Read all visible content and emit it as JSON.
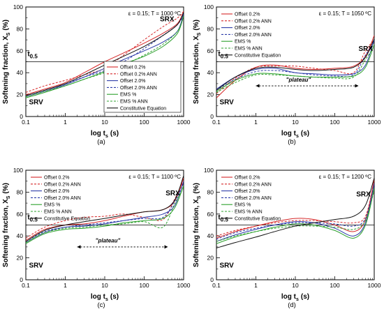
{
  "legend_entries": [
    "Offset 0.2%",
    "Offset 0.2% ANN",
    "Offset 2.0%",
    "Offset 2.0% ANN",
    "EMS %",
    "EMS % ANN",
    "Constitutive Equation"
  ],
  "series_colors": [
    "#d62728",
    "#d62728",
    "#2b3aa8",
    "#2b3aa8",
    "#2ca02c",
    "#2ca02c",
    "#111111"
  ],
  "series_dashed": [
    false,
    true,
    false,
    true,
    false,
    true,
    false
  ],
  "chart_data": [
    {
      "type": "line",
      "caption": "(a)",
      "condition": "ε = 0.15; T = 1000 ºC",
      "xlabel": "log t",
      "xlabel_sub": "s",
      "xlabel_unit": "(s)",
      "ylabel": "Softening fraction, X",
      "ylabel_sub": "S",
      "ylabel_unit": "(%)",
      "x_scale": "log",
      "xlim": [
        0.1,
        1000
      ],
      "ylim": [
        0,
        100
      ],
      "x_ticks": [
        0.1,
        1,
        10,
        100,
        1000
      ],
      "x_tick_labels": [
        "0.1",
        "1",
        "10",
        "100",
        "1000"
      ],
      "y_ticks": [
        0,
        20,
        40,
        60,
        80,
        100
      ],
      "y_tick_labels": [
        "0",
        "20",
        "40",
        "60",
        "80",
        "100"
      ],
      "legend_position": "bottom-right",
      "annotations": [
        {
          "text": "SRX",
          "x": 250,
          "y": 87
        },
        {
          "text": "SRV",
          "x": 0.12,
          "y": 11
        }
      ],
      "t05": {
        "label": "t",
        "label_sub": "0.5",
        "y": 50,
        "label_x": 0.11,
        "label_y": 55
      },
      "series": [
        {
          "name": "Offset 0.2%",
          "x": [
            0.1,
            0.3,
            1,
            3,
            10,
            30,
            100,
            300,
            700,
            1000
          ],
          "y": [
            20,
            25,
            31,
            40,
            50,
            58,
            67,
            76,
            85,
            96
          ]
        },
        {
          "name": "Offset 0.2% ANN",
          "x": [
            0.1,
            0.3,
            1,
            3,
            10,
            30,
            100,
            300,
            700,
            1000
          ],
          "y": [
            22,
            28,
            33,
            38,
            44,
            56,
            70,
            82,
            90,
            96
          ]
        },
        {
          "name": "Offset 2.0%",
          "x": [
            0.1,
            0.3,
            1,
            3,
            10,
            30,
            100,
            300,
            700,
            1000
          ],
          "y": [
            18,
            23,
            29,
            36,
            44,
            52,
            60,
            68,
            78,
            94
          ]
        },
        {
          "name": "Offset 2.0% ANN",
          "x": [
            0.1,
            0.3,
            1,
            3,
            10,
            30,
            100,
            300,
            700,
            1000
          ],
          "y": [
            19,
            24,
            30,
            36,
            42,
            50,
            62,
            74,
            84,
            93
          ]
        },
        {
          "name": "EMS %",
          "x": [
            0.1,
            0.3,
            1,
            3,
            10,
            30,
            100,
            300,
            700,
            1000
          ],
          "y": [
            17,
            22,
            28,
            34,
            41,
            48,
            55,
            64,
            76,
            92
          ]
        },
        {
          "name": "EMS % ANN",
          "x": [
            0.1,
            0.3,
            1,
            3,
            10,
            30,
            100,
            300,
            700,
            1000
          ],
          "y": [
            18,
            23,
            28,
            34,
            40,
            47,
            56,
            66,
            78,
            91
          ]
        },
        {
          "name": "Constitutive Equation",
          "x": [
            0.1,
            0.3,
            1,
            3,
            10,
            30,
            100,
            300,
            700,
            1000
          ],
          "y": [
            19,
            24,
            30,
            38,
            47,
            55,
            64,
            74,
            84,
            95
          ]
        }
      ]
    },
    {
      "type": "line",
      "caption": "(b)",
      "condition": "ε = 0.15; T = 1050 ºC",
      "xlabel": "log t",
      "xlabel_sub": "s",
      "xlabel_unit": "(s)",
      "ylabel": "Softening fraction, X",
      "ylabel_sub": "S",
      "ylabel_unit": "(%)",
      "x_scale": "log",
      "xlim": [
        0.1,
        1000
      ],
      "ylim": [
        0,
        100
      ],
      "x_ticks": [
        0.1,
        1,
        10,
        100,
        1000
      ],
      "x_tick_labels": [
        "0.1",
        "1",
        "10",
        "100",
        "1000"
      ],
      "y_ticks": [
        0,
        20,
        40,
        60,
        80,
        100
      ],
      "y_tick_labels": [
        "0",
        "20",
        "40",
        "60",
        "80",
        "100"
      ],
      "legend_position": "top-left",
      "annotations": [
        {
          "text": "SRX",
          "x": 400,
          "y": 60
        },
        {
          "text": "SRV",
          "x": 0.12,
          "y": 11
        },
        {
          "text": "\"plateau\"",
          "x": 12,
          "y": 32
        }
      ],
      "plateau_arrow": {
        "x_start": 1,
        "x_end": 400,
        "y": 28
      },
      "t05": {
        "label": "t",
        "label_sub": "0.5",
        "y": 50,
        "label_x": 0.11,
        "label_y": 55
      },
      "series": [
        {
          "name": "Offset 0.2%",
          "x": [
            0.1,
            0.3,
            1,
            3,
            10,
            30,
            100,
            300,
            600,
            1000
          ],
          "y": [
            17,
            33,
            45,
            47,
            44,
            43,
            44,
            46,
            55,
            74
          ]
        },
        {
          "name": "Offset 0.2% ANN",
          "x": [
            0.1,
            0.3,
            1,
            3,
            10,
            30,
            100,
            300,
            600,
            1000
          ],
          "y": [
            21,
            35,
            45,
            46,
            46,
            44,
            42,
            40,
            60,
            70
          ]
        },
        {
          "name": "Offset 2.0%",
          "x": [
            0.1,
            0.3,
            1,
            3,
            10,
            30,
            100,
            300,
            600,
            1000
          ],
          "y": [
            25,
            36,
            43,
            44,
            40,
            39,
            38,
            39,
            47,
            70
          ]
        },
        {
          "name": "Offset 2.0% ANN",
          "x": [
            0.1,
            0.3,
            1,
            3,
            10,
            30,
            100,
            300,
            600,
            1000
          ],
          "y": [
            24,
            34,
            41,
            42,
            40,
            38,
            37,
            38,
            56,
            68
          ]
        },
        {
          "name": "EMS %",
          "x": [
            0.1,
            0.3,
            1,
            3,
            10,
            30,
            100,
            300,
            600,
            1000
          ],
          "y": [
            23,
            33,
            39,
            39,
            37,
            36,
            36,
            37,
            45,
            66
          ]
        },
        {
          "name": "EMS % ANN",
          "x": [
            0.1,
            0.3,
            1,
            3,
            10,
            30,
            100,
            300,
            600,
            1000
          ],
          "y": [
            22,
            31,
            38,
            38,
            37,
            36,
            35,
            36,
            52,
            64
          ]
        },
        {
          "name": "Constitutive Equation",
          "x": [
            0.1,
            0.3,
            1,
            3,
            10,
            30,
            100,
            300,
            600,
            1000
          ],
          "y": [
            24,
            36,
            44,
            45,
            43,
            42,
            43,
            45,
            54,
            71
          ]
        }
      ]
    },
    {
      "type": "line",
      "caption": "(c)",
      "condition": "ε = 0.15; T = 1100 ºC",
      "xlabel": "log t",
      "xlabel_sub": "s",
      "xlabel_unit": "(s)",
      "ylabel": "Softening fraction, X",
      "ylabel_sub": "S",
      "ylabel_unit": "(%)",
      "x_scale": "log",
      "xlim": [
        0.1,
        1000
      ],
      "ylim": [
        0,
        100
      ],
      "x_ticks": [
        0.1,
        1,
        10,
        100,
        1000
      ],
      "x_tick_labels": [
        "0.1",
        "1",
        "10",
        "100",
        "1000"
      ],
      "y_ticks": [
        0,
        20,
        40,
        60,
        80,
        100
      ],
      "y_tick_labels": [
        "0",
        "20",
        "40",
        "60",
        "80",
        "100"
      ],
      "legend_position": "top-left",
      "annotations": [
        {
          "text": "SRX",
          "x": 350,
          "y": 77
        },
        {
          "text": "SRV",
          "x": 0.12,
          "y": 11
        },
        {
          "text": "\"plateau\"",
          "x": 12,
          "y": 34
        }
      ],
      "plateau_arrow": {
        "x_start": 2,
        "x_end": 400,
        "y": 30
      },
      "t05": {
        "label": "t",
        "label_sub": "0.5",
        "y": 50,
        "label_x": 0.11,
        "label_y": 55
      },
      "series": [
        {
          "name": "Offset 0.2%",
          "x": [
            0.1,
            0.3,
            1,
            3,
            10,
            30,
            100,
            300,
            600,
            1000
          ],
          "y": [
            36,
            46,
            50,
            51,
            54,
            58,
            62,
            64,
            72,
            93
          ]
        },
        {
          "name": "Offset 0.2% ANN",
          "x": [
            0.1,
            0.3,
            1,
            3,
            10,
            30,
            100,
            300,
            600,
            1000
          ],
          "y": [
            38,
            48,
            54,
            57,
            58,
            60,
            57,
            55,
            74,
            90
          ]
        },
        {
          "name": "Offset 2.0%",
          "x": [
            0.1,
            0.3,
            1,
            3,
            10,
            30,
            100,
            300,
            600,
            1000
          ],
          "y": [
            34,
            43,
            48,
            49,
            51,
            54,
            57,
            60,
            68,
            90
          ]
        },
        {
          "name": "Offset 2.0% ANN",
          "x": [
            0.1,
            0.3,
            1,
            3,
            10,
            30,
            100,
            300,
            600,
            1000
          ],
          "y": [
            35,
            44,
            48,
            50,
            52,
            54,
            56,
            57,
            72,
            88
          ]
        },
        {
          "name": "EMS %",
          "x": [
            0.1,
            0.3,
            1,
            3,
            10,
            30,
            100,
            300,
            600,
            1000
          ],
          "y": [
            33,
            42,
            46,
            47,
            49,
            52,
            54,
            56,
            66,
            86
          ]
        },
        {
          "name": "EMS % ANN",
          "x": [
            0.1,
            0.3,
            1,
            3,
            10,
            30,
            100,
            300,
            600,
            1000
          ],
          "y": [
            34,
            43,
            47,
            48,
            50,
            51,
            53,
            48,
            70,
            84
          ]
        },
        {
          "name": "Constitutive Equation",
          "x": [
            0.1,
            0.3,
            1,
            3,
            10,
            30,
            100,
            300,
            600,
            1000
          ],
          "y": [
            35,
            45,
            50,
            53,
            56,
            59,
            62,
            64,
            73,
            95
          ]
        }
      ]
    },
    {
      "type": "line",
      "caption": "(d)",
      "condition": "ε = 0.15; T = 1200 ºC",
      "xlabel": "log t",
      "xlabel_sub": "s",
      "xlabel_unit": "(s)",
      "ylabel": "Softening fraction, X",
      "ylabel_sub": "S",
      "ylabel_unit": "(%)",
      "x_scale": "log",
      "xlim": [
        0.1,
        1000
      ],
      "ylim": [
        0,
        100
      ],
      "x_ticks": [
        0.1,
        1,
        10,
        100,
        1000
      ],
      "x_tick_labels": [
        "0.1",
        "1",
        "10",
        "100",
        "1000"
      ],
      "y_ticks": [
        0,
        20,
        40,
        60,
        80,
        100
      ],
      "y_tick_labels": [
        "0",
        "20",
        "40",
        "60",
        "80",
        "100"
      ],
      "legend_position": "top-left",
      "annotations": [
        {
          "text": "SRX",
          "x": 350,
          "y": 76
        },
        {
          "text": "SRV",
          "x": 0.12,
          "y": 11
        }
      ],
      "t05": {
        "label": "t",
        "label_sub": "0.5",
        "y": 50,
        "label_x": 0.11,
        "label_y": 55
      },
      "series": [
        {
          "name": "Offset 0.2%",
          "x": [
            0.1,
            0.3,
            1,
            3,
            10,
            30,
            100,
            300,
            600,
            1000
          ],
          "y": [
            38,
            44,
            49,
            53,
            56,
            55,
            50,
            44,
            55,
            92
          ]
        },
        {
          "name": "Offset 0.2% ANN",
          "x": [
            0.1,
            0.3,
            1,
            3,
            10,
            30,
            100,
            300,
            600,
            1000
          ],
          "y": [
            40,
            45,
            49,
            52,
            54,
            54,
            53,
            52,
            58,
            90
          ]
        },
        {
          "name": "Offset 2.0%",
          "x": [
            0.1,
            0.3,
            1,
            3,
            10,
            30,
            100,
            300,
            600,
            1000
          ],
          "y": [
            35,
            41,
            46,
            50,
            53,
            52,
            47,
            40,
            52,
            88
          ]
        },
        {
          "name": "Offset 2.0% ANN",
          "x": [
            0.1,
            0.3,
            1,
            3,
            10,
            30,
            100,
            300,
            600,
            1000
          ],
          "y": [
            37,
            43,
            47,
            50,
            52,
            52,
            51,
            49,
            56,
            86
          ]
        },
        {
          "name": "EMS %",
          "x": [
            0.1,
            0.3,
            1,
            3,
            10,
            30,
            100,
            300,
            600,
            1000
          ],
          "y": [
            33,
            39,
            44,
            48,
            51,
            50,
            45,
            38,
            50,
            84
          ]
        },
        {
          "name": "EMS % ANN",
          "x": [
            0.1,
            0.3,
            1,
            3,
            10,
            30,
            100,
            300,
            600,
            1000
          ],
          "y": [
            35,
            40,
            44,
            47,
            49,
            49,
            48,
            46,
            54,
            82
          ]
        },
        {
          "name": "Constitutive Equation",
          "x": [
            0.1,
            0.3,
            1,
            3,
            10,
            30,
            100,
            300,
            600,
            1000
          ],
          "y": [
            29,
            34,
            39,
            44,
            49,
            52,
            55,
            58,
            68,
            93
          ]
        }
      ]
    }
  ]
}
